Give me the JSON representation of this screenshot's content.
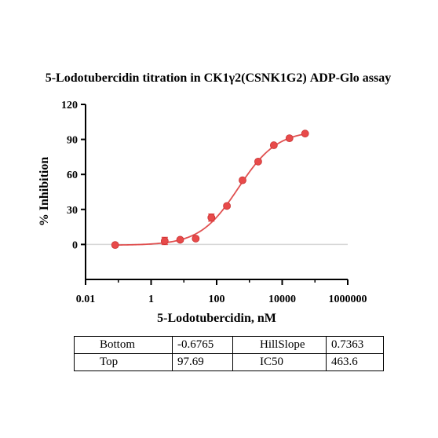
{
  "chart_data": {
    "type": "scatter",
    "title": "5-Lodotubercidin titration in CK1γ2(CSNK1G2) ADP-Glo assay",
    "xlabel": "5-Lodotubercidin, nM",
    "ylabel": "% Inhibition",
    "x_scale": "log",
    "xlim": [
      0.01,
      1000000
    ],
    "ylim": [
      -30,
      120
    ],
    "x_ticks": [
      "0.01",
      "1",
      "100",
      "10000",
      "1000000"
    ],
    "x_tick_values": [
      0.01,
      1,
      100,
      10000,
      1000000
    ],
    "y_ticks": [
      "120",
      "90",
      "60",
      "30",
      "0"
    ],
    "y_tick_values": [
      120,
      90,
      60,
      30,
      0
    ],
    "zero_line": true,
    "series": [
      {
        "x": [
          0.08,
          2.6,
          7.7,
          23,
          69,
          206,
          617,
          1852,
          5556,
          16667,
          50000
        ],
        "y": [
          -0.5,
          3,
          4,
          5,
          23,
          33,
          55,
          71,
          85,
          91,
          95
        ],
        "error": [
          0,
          3,
          1,
          1,
          3,
          1,
          1,
          1,
          1,
          1,
          1
        ]
      }
    ],
    "fit": {
      "bottom": -0.6765,
      "top": 97.69,
      "hill_slope": 0.7363,
      "ic50": 463.6
    },
    "marker_color": "#e84a4a",
    "fit_color": "#e05050"
  },
  "params_table": {
    "rows": [
      [
        "Bottom",
        "-0.6765",
        "HillSlope",
        "0.7363"
      ],
      [
        "Top",
        "97.69",
        "IC50",
        "463.6"
      ]
    ]
  }
}
